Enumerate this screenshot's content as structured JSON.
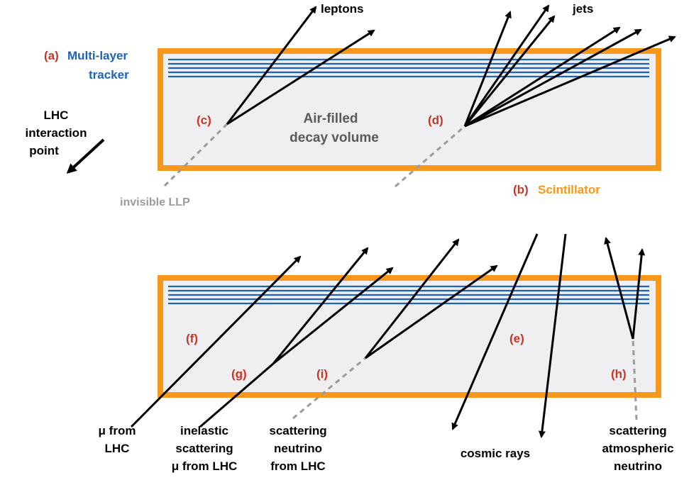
{
  "labels": {
    "a_tag": "(a)",
    "tracker_line1": "Multi-layer",
    "tracker_line2": "tracker",
    "b_tag": "(b)",
    "scintillator": "Scintillator",
    "lhc_line1": "LHC",
    "lhc_line2": "interaction",
    "lhc_line3": "point",
    "leptons": "leptons",
    "jets": "jets",
    "c_tag": "(c)",
    "d_tag": "(d)",
    "decay_line1": "Air-filled",
    "decay_line2": "decay volume",
    "invisible_llp": "invisible LLP",
    "e_tag": "(e)",
    "f_tag": "(f)",
    "g_tag": "(g)",
    "h_tag": "(h)",
    "i_tag": "(i)",
    "mu_lhc_line1": "μ from",
    "mu_lhc_line2": "LHC",
    "inelastic_line1": "inelastic",
    "inelastic_line2": "scattering",
    "inelastic_line3": "μ from LHC",
    "nu_lhc_line1": "scattering",
    "nu_lhc_line2": "neutrino",
    "nu_lhc_line3": "from LHC",
    "cosmic_rays": "cosmic rays",
    "atm_line1": "scattering",
    "atm_line2": "atmospheric",
    "atm_line3": "neutrino"
  },
  "colors": {
    "frame": "#f7981d",
    "tracker": "#1f63b8",
    "tag": "#cc3322",
    "fill": "#efeff1",
    "arrow": "#000000",
    "invisible": "#9b9b9b",
    "decay_text": "#5a5a5a"
  }
}
